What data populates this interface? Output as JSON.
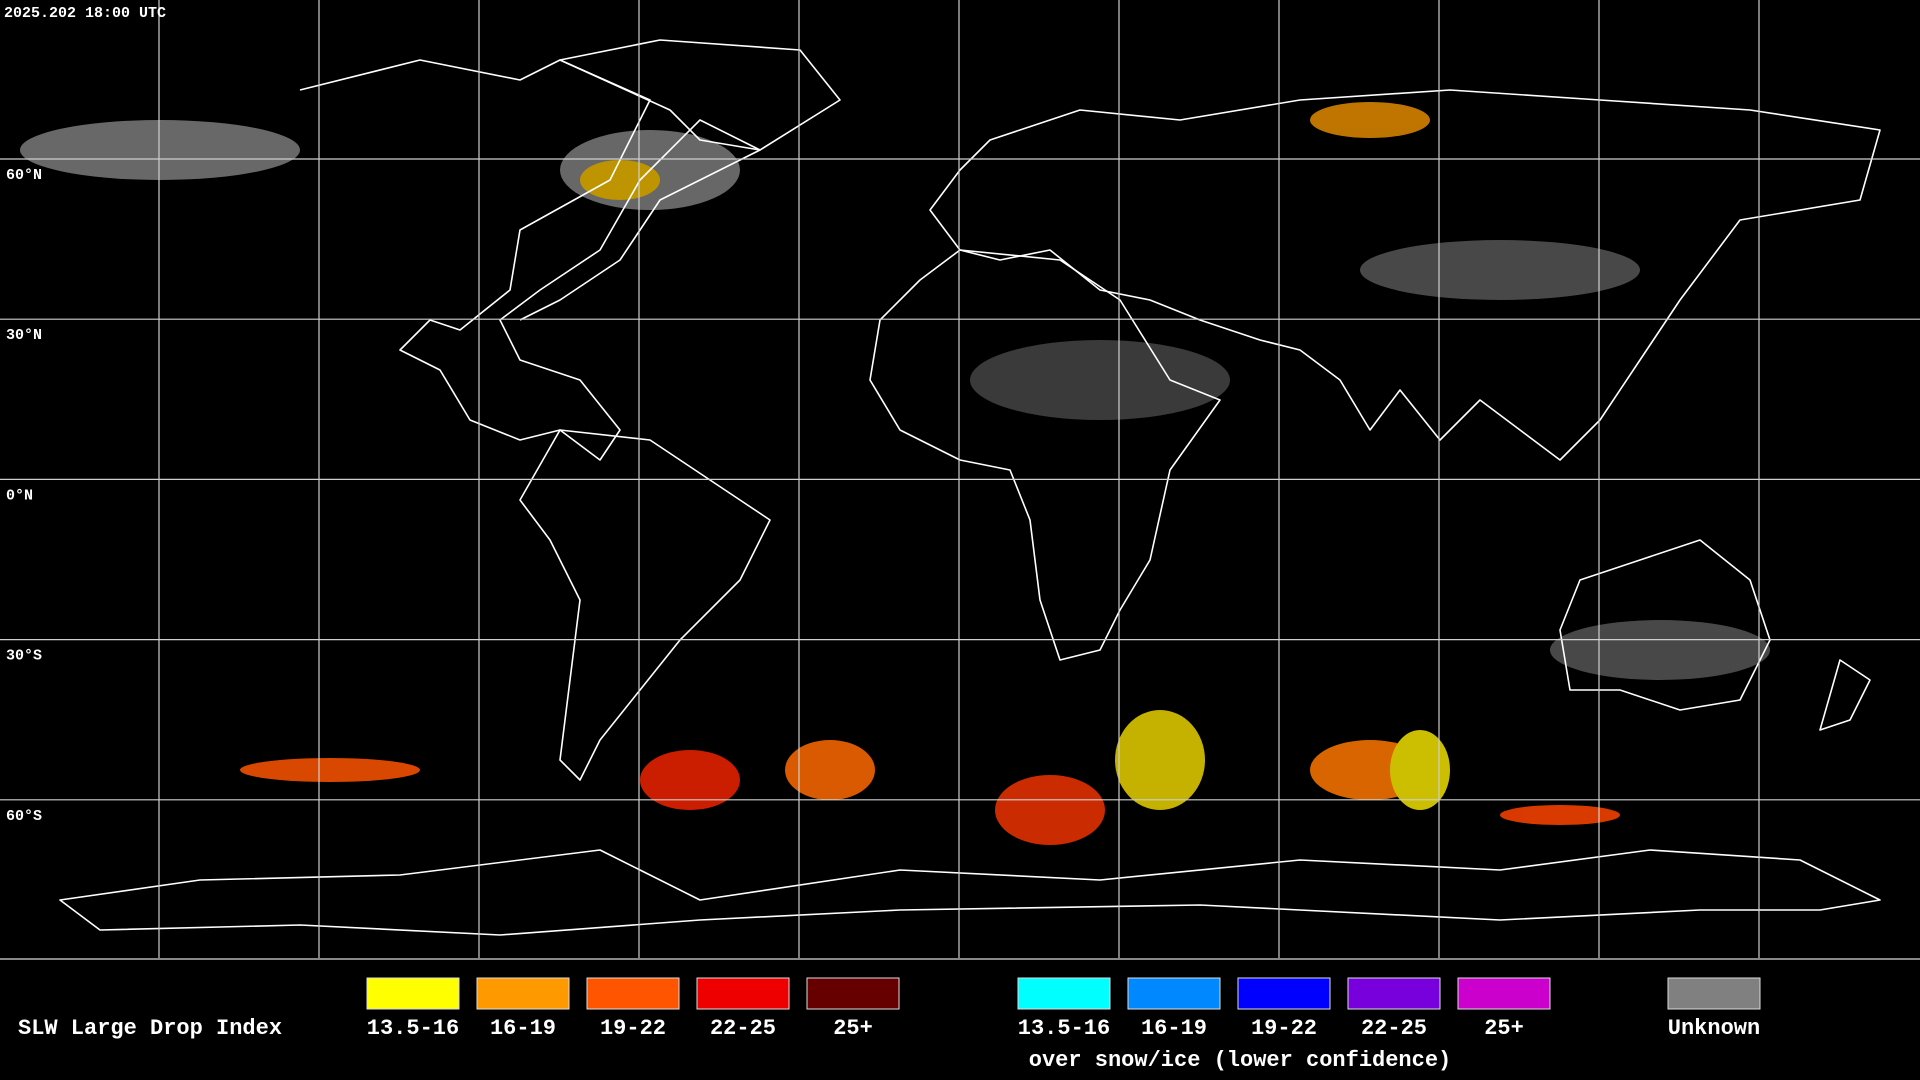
{
  "header": {
    "timestamp": "2025.202 18:00 UTC"
  },
  "map": {
    "latitude_labels": [
      "60°N",
      "30°N",
      "0°N",
      "30°S",
      "60°S"
    ]
  },
  "legend": {
    "title": "SLW Large Drop Index",
    "items": [
      {
        "label": "13.5-16",
        "color": "#ffff00"
      },
      {
        "label": "16-19",
        "color": "#ff9900"
      },
      {
        "label": "19-22",
        "color": "#ff5500"
      },
      {
        "label": "22-25",
        "color": "#ee0000"
      },
      {
        "label": "25+",
        "color": "#660000"
      }
    ],
    "snow_items": [
      {
        "label": "13.5-16",
        "color": "#00ffff"
      },
      {
        "label": "16-19",
        "color": "#0088ff"
      },
      {
        "label": "19-22",
        "color": "#0000ff"
      },
      {
        "label": "22-25",
        "color": "#7700dd"
      },
      {
        "label": "25+",
        "color": "#cc00cc"
      }
    ],
    "snow_note": "over snow/ice (lower confidence)",
    "unknown": {
      "label": "Unknown",
      "color": "#808080"
    }
  }
}
